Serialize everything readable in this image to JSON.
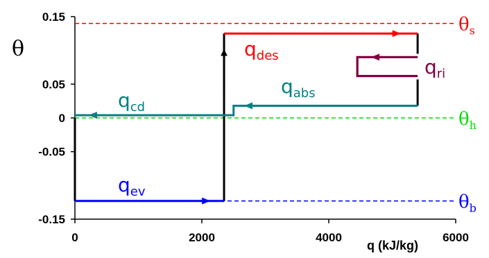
{
  "chart_data": {
    "type": "line",
    "title": "",
    "xlabel": "q (kJ/kg)",
    "ylabel": "θ",
    "xlim": [
      0,
      6000
    ],
    "ylim": [
      -0.15,
      0.15
    ],
    "x_ticks": [
      "0",
      "2000",
      "4000",
      "6000"
    ],
    "y_ticks": [
      "0.15",
      "0.05",
      "0",
      "-0.05",
      "-0.15"
    ],
    "y_tick_values": [
      0.15,
      0.05,
      0,
      -0.05,
      -0.15
    ],
    "x_tick_values": [
      0,
      2000,
      4000,
      6000
    ],
    "grid": false,
    "reference_lines": [
      {
        "name": "θs",
        "symbol": "θ",
        "subscript": "s",
        "y": 0.14,
        "color": "#ff0000"
      },
      {
        "name": "θh",
        "symbol": "θ",
        "subscript": "h",
        "y": 0.0,
        "color": "#00dd00"
      },
      {
        "name": "θb",
        "symbol": "θ",
        "subscript": "b",
        "y": -0.123,
        "color": "#0000ff"
      }
    ],
    "cycle_lines": [
      {
        "color": "#000000",
        "points": [
          [
            0,
            0.0
          ],
          [
            0,
            -0.123
          ]
        ]
      },
      {
        "color": "#000000",
        "points": [
          [
            2350,
            -0.123
          ],
          [
            2350,
            0.125
          ]
        ]
      },
      {
        "color": "#000000",
        "points": [
          [
            5400,
            0.125
          ],
          [
            5400,
            0.095
          ]
        ]
      },
      {
        "color": "#000000",
        "points": [
          [
            5400,
            0.057
          ],
          [
            5400,
            0.018
          ]
        ]
      },
      {
        "color": "#800040",
        "points": [
          [
            5400,
            0.09
          ],
          [
            4450,
            0.09
          ],
          [
            4450,
            0.062
          ],
          [
            5400,
            0.062
          ]
        ]
      }
    ],
    "series": [
      {
        "name": "qev",
        "symbol": "q",
        "subscript": "ev",
        "color": "#0000ff",
        "x": [
          0,
          2350
        ],
        "y": [
          -0.123,
          -0.123
        ],
        "arrow_at": 2100
      },
      {
        "name": "qcd",
        "symbol": "q",
        "subscript": "cd",
        "color": "#008080",
        "x": [
          2350,
          0
        ],
        "y": [
          0.004,
          0.004
        ],
        "arrow_at": 250
      },
      {
        "name": "qabs",
        "symbol": "q",
        "subscript": "abs",
        "color": "#008080",
        "x": [
          5400,
          2500,
          2500,
          2350
        ],
        "y": [
          0.018,
          0.018,
          0.004,
          0.004
        ],
        "arrow_at": 2700
      },
      {
        "name": "qdes",
        "symbol": "q",
        "subscript": "des",
        "color": "#ff0000",
        "x": [
          2350,
          5400
        ],
        "y": [
          0.125,
          0.125
        ],
        "arrow_at": 5100
      },
      {
        "name": "qri",
        "symbol": "q",
        "subscript": "ri",
        "color": "#800040",
        "x": [
          5400,
          4450,
          4450,
          5400
        ],
        "y": [
          0.09,
          0.09,
          0.062,
          0.062
        ],
        "arrow_at": 4700
      }
    ]
  }
}
